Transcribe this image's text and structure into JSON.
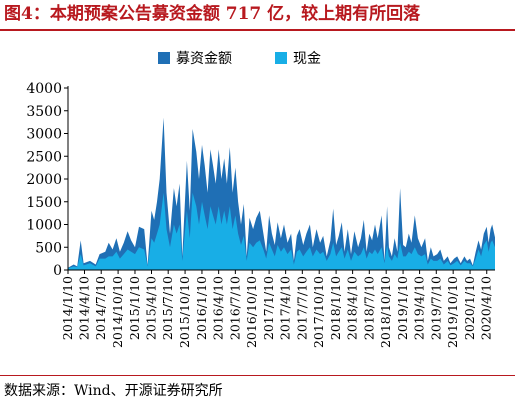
{
  "header": {
    "title": "图4：本期预案公告募资金额 717 亿，较上期有所回落"
  },
  "footer": {
    "source": "数据来源：Wind、开源证券研究所"
  },
  "colors": {
    "fundraise": "#1f6fb5",
    "cash": "#18aee6",
    "title_red": "#b8191f"
  },
  "chart_data": {
    "type": "area",
    "title": "",
    "xlabel": "",
    "ylabel": "",
    "ylim": [
      0,
      4000
    ],
    "yticks": [
      0,
      500,
      1000,
      1500,
      2000,
      2500,
      3000,
      3500,
      4000
    ],
    "grid": false,
    "legend_position": "top-center",
    "x_range": [
      "2014-01-10",
      "2020-05-25"
    ],
    "xtick_labels": [
      "2014/1/10",
      "2014/4/10",
      "2014/7/10",
      "2014/10/10",
      "2015/1/10",
      "2015/4/10",
      "2015/7/10",
      "2015/10/10",
      "2016/1/10",
      "2016/4/10",
      "2016/7/10",
      "2016/10/10",
      "2017/1/10",
      "2017/4/10",
      "2017/7/10",
      "2017/10/10",
      "2018/1/10",
      "2018/4/10",
      "2018/7/10",
      "2018/10/10",
      "2019/1/10",
      "2019/4/10",
      "2019/7/10",
      "2019/10/10",
      "2020/1/10",
      "2020/4/10"
    ],
    "series": [
      {
        "name": "募资金额",
        "color": "#1f6fb5",
        "points": [
          [
            "2014-01-10",
            50
          ],
          [
            "2014-02-10",
            120
          ],
          [
            "2014-03-01",
            80
          ],
          [
            "2014-03-20",
            650
          ],
          [
            "2014-04-05",
            150
          ],
          [
            "2014-05-10",
            200
          ],
          [
            "2014-06-10",
            120
          ],
          [
            "2014-07-01",
            350
          ],
          [
            "2014-08-01",
            400
          ],
          [
            "2014-08-20",
            600
          ],
          [
            "2014-09-10",
            450
          ],
          [
            "2014-10-01",
            700
          ],
          [
            "2014-10-20",
            400
          ],
          [
            "2014-11-10",
            600
          ],
          [
            "2014-12-01",
            850
          ],
          [
            "2014-12-20",
            650
          ],
          [
            "2015-01-10",
            500
          ],
          [
            "2015-02-01",
            950
          ],
          [
            "2015-03-01",
            900
          ],
          [
            "2015-03-20",
            100
          ],
          [
            "2015-04-10",
            1300
          ],
          [
            "2015-04-25",
            1100
          ],
          [
            "2015-05-10",
            1500
          ],
          [
            "2015-05-25",
            2000
          ],
          [
            "2015-06-15",
            3350
          ],
          [
            "2015-07-01",
            1700
          ],
          [
            "2015-07-20",
            800
          ],
          [
            "2015-08-10",
            1800
          ],
          [
            "2015-08-25",
            1400
          ],
          [
            "2015-09-10",
            1900
          ],
          [
            "2015-09-25",
            300
          ],
          [
            "2015-10-20",
            2400
          ],
          [
            "2015-11-05",
            1300
          ],
          [
            "2015-11-20",
            3100
          ],
          [
            "2015-12-10",
            2600
          ],
          [
            "2015-12-25",
            2000
          ],
          [
            "2016-01-10",
            2750
          ],
          [
            "2016-01-25",
            2300
          ],
          [
            "2016-02-10",
            1700
          ],
          [
            "2016-02-25",
            2650
          ],
          [
            "2016-03-10",
            2300
          ],
          [
            "2016-03-25",
            1900
          ],
          [
            "2016-04-10",
            2650
          ],
          [
            "2016-04-25",
            2000
          ],
          [
            "2016-05-10",
            2450
          ],
          [
            "2016-05-25",
            1900
          ],
          [
            "2016-06-10",
            2700
          ],
          [
            "2016-06-25",
            1700
          ],
          [
            "2016-07-10",
            2250
          ],
          [
            "2016-07-25",
            1500
          ],
          [
            "2016-08-10",
            1000
          ],
          [
            "2016-08-25",
            1450
          ],
          [
            "2016-09-10",
            300
          ],
          [
            "2016-09-25",
            1150
          ],
          [
            "2016-10-15",
            900
          ],
          [
            "2016-11-01",
            1150
          ],
          [
            "2016-11-20",
            1300
          ],
          [
            "2016-12-10",
            800
          ],
          [
            "2016-12-25",
            400
          ],
          [
            "2017-01-10",
            1200
          ],
          [
            "2017-01-25",
            800
          ],
          [
            "2017-02-10",
            550
          ],
          [
            "2017-02-25",
            1050
          ],
          [
            "2017-03-15",
            700
          ],
          [
            "2017-04-01",
            1000
          ],
          [
            "2017-04-20",
            600
          ],
          [
            "2017-05-10",
            800
          ],
          [
            "2017-05-25",
            200
          ],
          [
            "2017-06-10",
            750
          ],
          [
            "2017-06-25",
            900
          ],
          [
            "2017-07-15",
            550
          ],
          [
            "2017-08-01",
            800
          ],
          [
            "2017-08-20",
            1000
          ],
          [
            "2017-09-05",
            500
          ],
          [
            "2017-09-25",
            900
          ],
          [
            "2017-10-15",
            600
          ],
          [
            "2017-11-01",
            750
          ],
          [
            "2017-11-20",
            300
          ],
          [
            "2017-12-10",
            650
          ],
          [
            "2017-12-25",
            1350
          ],
          [
            "2018-01-10",
            550
          ],
          [
            "2018-01-25",
            750
          ],
          [
            "2018-02-10",
            1050
          ],
          [
            "2018-02-25",
            400
          ],
          [
            "2018-03-15",
            900
          ],
          [
            "2018-04-01",
            350
          ],
          [
            "2018-04-20",
            850
          ],
          [
            "2018-05-10",
            500
          ],
          [
            "2018-05-25",
            700
          ],
          [
            "2018-06-10",
            1100
          ],
          [
            "2018-06-25",
            400
          ],
          [
            "2018-07-10",
            800
          ],
          [
            "2018-07-25",
            650
          ],
          [
            "2018-08-10",
            1000
          ],
          [
            "2018-08-25",
            700
          ],
          [
            "2018-09-15",
            1200
          ],
          [
            "2018-10-01",
            200
          ],
          [
            "2018-10-15",
            1400
          ],
          [
            "2018-10-25",
            500
          ],
          [
            "2018-11-10",
            300
          ],
          [
            "2018-11-25",
            700
          ],
          [
            "2018-12-10",
            400
          ],
          [
            "2018-12-25",
            1800
          ],
          [
            "2019-01-10",
            550
          ],
          [
            "2019-01-25",
            500
          ],
          [
            "2019-02-10",
            800
          ],
          [
            "2019-02-25",
            600
          ],
          [
            "2019-03-15",
            1200
          ],
          [
            "2019-04-01",
            700
          ],
          [
            "2019-04-20",
            500
          ],
          [
            "2019-05-10",
            700
          ],
          [
            "2019-05-25",
            200
          ],
          [
            "2019-06-10",
            500
          ],
          [
            "2019-06-25",
            300
          ],
          [
            "2019-07-15",
            350
          ],
          [
            "2019-08-01",
            450
          ],
          [
            "2019-08-20",
            200
          ],
          [
            "2019-09-10",
            300
          ],
          [
            "2019-09-25",
            150
          ],
          [
            "2019-10-15",
            250
          ],
          [
            "2019-11-01",
            300
          ],
          [
            "2019-11-20",
            150
          ],
          [
            "2019-12-10",
            300
          ],
          [
            "2019-12-25",
            200
          ],
          [
            "2020-01-10",
            250
          ],
          [
            "2020-01-25",
            100
          ],
          [
            "2020-02-10",
            400
          ],
          [
            "2020-02-25",
            650
          ],
          [
            "2020-03-10",
            450
          ],
          [
            "2020-03-25",
            800
          ],
          [
            "2020-04-10",
            950
          ],
          [
            "2020-04-20",
            600
          ],
          [
            "2020-05-01",
            900
          ],
          [
            "2020-05-10",
            1000
          ],
          [
            "2020-05-25",
            717
          ]
        ]
      },
      {
        "name": "现金",
        "color": "#18aee6",
        "points": [
          [
            "2014-01-10",
            40
          ],
          [
            "2014-02-10",
            80
          ],
          [
            "2014-03-01",
            60
          ],
          [
            "2014-03-20",
            350
          ],
          [
            "2014-04-05",
            100
          ],
          [
            "2014-05-10",
            150
          ],
          [
            "2014-06-10",
            80
          ],
          [
            "2014-07-01",
            250
          ],
          [
            "2014-08-01",
            250
          ],
          [
            "2014-08-20",
            300
          ],
          [
            "2014-09-10",
            300
          ],
          [
            "2014-10-01",
            400
          ],
          [
            "2014-10-20",
            250
          ],
          [
            "2014-11-10",
            350
          ],
          [
            "2014-12-01",
            450
          ],
          [
            "2014-12-20",
            400
          ],
          [
            "2015-01-10",
            350
          ],
          [
            "2015-02-01",
            500
          ],
          [
            "2015-03-01",
            450
          ],
          [
            "2015-03-20",
            80
          ],
          [
            "2015-04-10",
            700
          ],
          [
            "2015-04-25",
            600
          ],
          [
            "2015-05-10",
            800
          ],
          [
            "2015-05-25",
            1000
          ],
          [
            "2015-06-15",
            1700
          ],
          [
            "2015-07-01",
            900
          ],
          [
            "2015-07-20",
            500
          ],
          [
            "2015-08-10",
            1000
          ],
          [
            "2015-08-25",
            800
          ],
          [
            "2015-09-10",
            1000
          ],
          [
            "2015-09-25",
            200
          ],
          [
            "2015-10-20",
            1300
          ],
          [
            "2015-11-05",
            700
          ],
          [
            "2015-11-20",
            1700
          ],
          [
            "2015-12-10",
            1400
          ],
          [
            "2015-12-25",
            1000
          ],
          [
            "2016-01-10",
            1500
          ],
          [
            "2016-01-25",
            1200
          ],
          [
            "2016-02-10",
            900
          ],
          [
            "2016-02-25",
            1400
          ],
          [
            "2016-03-10",
            1200
          ],
          [
            "2016-03-25",
            1000
          ],
          [
            "2016-04-10",
            1400
          ],
          [
            "2016-04-25",
            1000
          ],
          [
            "2016-05-10",
            1300
          ],
          [
            "2016-05-25",
            1000
          ],
          [
            "2016-06-10",
            1400
          ],
          [
            "2016-06-25",
            900
          ],
          [
            "2016-07-10",
            1200
          ],
          [
            "2016-07-25",
            800
          ],
          [
            "2016-08-10",
            550
          ],
          [
            "2016-08-25",
            750
          ],
          [
            "2016-09-10",
            200
          ],
          [
            "2016-09-25",
            600
          ],
          [
            "2016-10-15",
            500
          ],
          [
            "2016-11-01",
            600
          ],
          [
            "2016-11-20",
            650
          ],
          [
            "2016-12-10",
            450
          ],
          [
            "2016-12-25",
            250
          ],
          [
            "2017-01-10",
            600
          ],
          [
            "2017-01-25",
            450
          ],
          [
            "2017-02-10",
            300
          ],
          [
            "2017-02-25",
            550
          ],
          [
            "2017-03-15",
            400
          ],
          [
            "2017-04-01",
            500
          ],
          [
            "2017-04-20",
            350
          ],
          [
            "2017-05-10",
            450
          ],
          [
            "2017-05-25",
            120
          ],
          [
            "2017-06-10",
            400
          ],
          [
            "2017-06-25",
            450
          ],
          [
            "2017-07-15",
            300
          ],
          [
            "2017-08-01",
            400
          ],
          [
            "2017-08-20",
            500
          ],
          [
            "2017-09-05",
            300
          ],
          [
            "2017-09-25",
            450
          ],
          [
            "2017-10-15",
            350
          ],
          [
            "2017-11-01",
            400
          ],
          [
            "2017-11-20",
            200
          ],
          [
            "2017-12-10",
            350
          ],
          [
            "2017-12-25",
            600
          ],
          [
            "2018-01-10",
            300
          ],
          [
            "2018-01-25",
            400
          ],
          [
            "2018-02-10",
            500
          ],
          [
            "2018-02-25",
            250
          ],
          [
            "2018-03-15",
            450
          ],
          [
            "2018-04-01",
            200
          ],
          [
            "2018-04-20",
            400
          ],
          [
            "2018-05-10",
            300
          ],
          [
            "2018-05-25",
            350
          ],
          [
            "2018-06-10",
            500
          ],
          [
            "2018-06-25",
            250
          ],
          [
            "2018-07-10",
            400
          ],
          [
            "2018-07-25",
            350
          ],
          [
            "2018-08-10",
            450
          ],
          [
            "2018-08-25",
            350
          ],
          [
            "2018-09-15",
            500
          ],
          [
            "2018-10-01",
            150
          ],
          [
            "2018-10-15",
            550
          ],
          [
            "2018-10-25",
            300
          ],
          [
            "2018-11-10",
            200
          ],
          [
            "2018-11-25",
            350
          ],
          [
            "2018-12-10",
            250
          ],
          [
            "2018-12-25",
            600
          ],
          [
            "2019-01-10",
            300
          ],
          [
            "2019-01-25",
            300
          ],
          [
            "2019-02-10",
            400
          ],
          [
            "2019-02-25",
            350
          ],
          [
            "2019-03-15",
            500
          ],
          [
            "2019-04-01",
            350
          ],
          [
            "2019-04-20",
            300
          ],
          [
            "2019-05-10",
            350
          ],
          [
            "2019-05-25",
            120
          ],
          [
            "2019-06-10",
            250
          ],
          [
            "2019-06-25",
            200
          ],
          [
            "2019-07-15",
            200
          ],
          [
            "2019-08-01",
            250
          ],
          [
            "2019-08-20",
            120
          ],
          [
            "2019-09-10",
            200
          ],
          [
            "2019-09-25",
            100
          ],
          [
            "2019-10-15",
            150
          ],
          [
            "2019-11-01",
            200
          ],
          [
            "2019-11-20",
            100
          ],
          [
            "2019-12-10",
            200
          ],
          [
            "2019-12-25",
            150
          ],
          [
            "2020-01-10",
            150
          ],
          [
            "2020-01-25",
            80
          ],
          [
            "2020-02-10",
            250
          ],
          [
            "2020-02-25",
            450
          ],
          [
            "2020-03-10",
            300
          ],
          [
            "2020-03-25",
            550
          ],
          [
            "2020-04-10",
            650
          ],
          [
            "2020-04-20",
            400
          ],
          [
            "2020-05-01",
            600
          ],
          [
            "2020-05-10",
            650
          ],
          [
            "2020-05-25",
            500
          ]
        ]
      }
    ]
  }
}
